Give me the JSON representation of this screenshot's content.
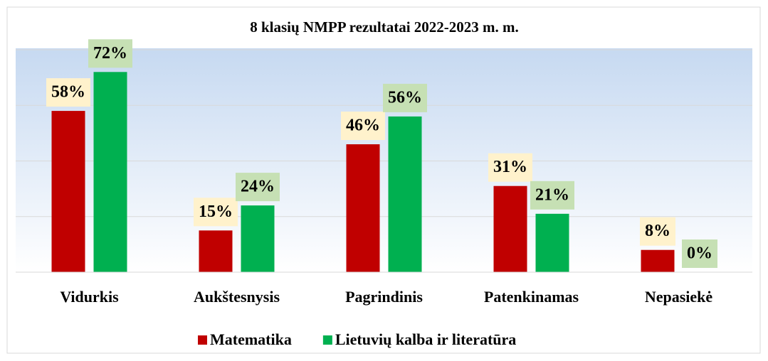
{
  "chart_data": {
    "type": "bar",
    "title": "8 klasių NMPP rezultatai 2022-2023 m. m.",
    "categories": [
      "Vidurkis",
      "Aukštesnysis",
      "Pagrindinis",
      "Patenkinamas",
      "Nepasiekė"
    ],
    "series": [
      {
        "name": "Matematika",
        "color": "#c00000",
        "values": [
          58,
          15,
          46,
          31,
          8
        ],
        "value_labels": [
          "58%",
          "15%",
          "46%",
          "31%",
          "8%"
        ]
      },
      {
        "name": "Lietuvių kalba ir literatūra",
        "color": "#00b050",
        "values": [
          72,
          24,
          56,
          21,
          0
        ],
        "value_labels": [
          "72%",
          "24%",
          "56%",
          "21%",
          "0%"
        ]
      }
    ],
    "ylim": [
      0,
      80
    ],
    "yticks": [
      0,
      20,
      40,
      60,
      80
    ],
    "grid": true,
    "legend": "bottom"
  }
}
